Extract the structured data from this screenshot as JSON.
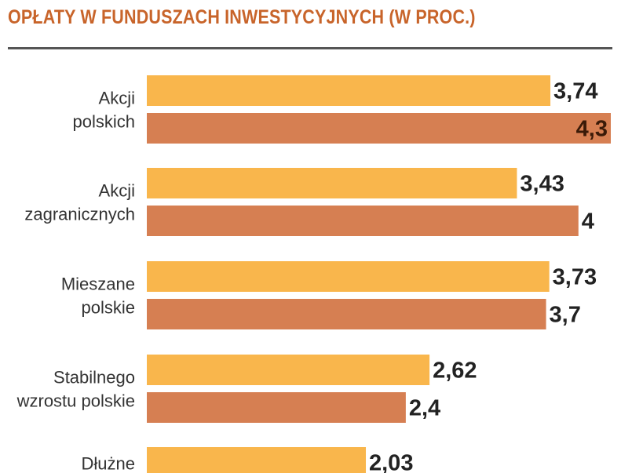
{
  "chart_data": {
    "type": "bar",
    "title": "OPŁATY W FUNDUSZACH INWESTYCYJNYCH (W PROC.)",
    "orientation": "horizontal",
    "colors": {
      "series1": "#f9b64c",
      "series2": "#d67f52",
      "label": "#222222",
      "category": "#333333"
    },
    "categories": [
      [
        "Akcji",
        "polskich"
      ],
      [
        "Akcji",
        "zagranicznych"
      ],
      [
        "Mieszane",
        "polskie"
      ],
      [
        "Stabilnego",
        "wzrostu polskie"
      ],
      [
        "Dłużne"
      ]
    ],
    "series": [
      {
        "values": [
          3.74,
          3.43,
          3.73,
          2.62,
          2.03
        ],
        "labels": [
          "3,74",
          "3,43",
          "3,73",
          "2,62",
          "2,03"
        ]
      },
      {
        "values": [
          4.3,
          4.0,
          3.7,
          2.4,
          null
        ],
        "labels": [
          "4,3",
          "4",
          "3,7",
          "2,4",
          ""
        ]
      }
    ],
    "xlim": [
      0,
      4.3
    ]
  }
}
